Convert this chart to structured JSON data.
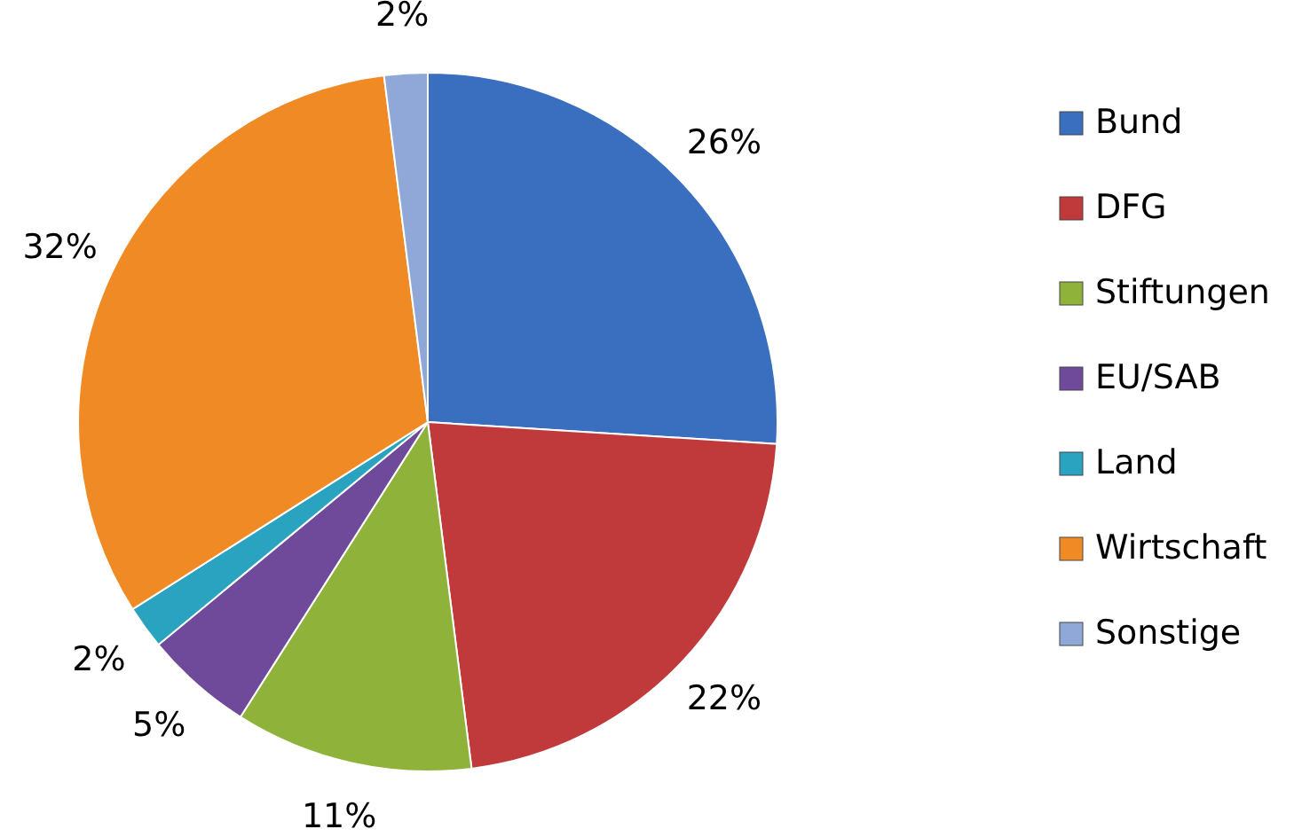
{
  "chart_data": {
    "type": "pie",
    "categories": [
      "Bund",
      "DFG",
      "Stiftungen",
      "EU/SAB",
      "Land",
      "Wirtschaft",
      "Sonstige"
    ],
    "values": [
      26,
      22,
      11,
      5,
      2,
      32,
      2
    ],
    "colors": [
      "#3a6fc0",
      "#c0393b",
      "#8fb33a",
      "#6f4a9a",
      "#2aa3c0",
      "#f08a24",
      "#8fa8d8"
    ],
    "value_labels": [
      "26%",
      "22%",
      "11%",
      "5%",
      "2%",
      "32%",
      "2%"
    ],
    "legend": "right"
  }
}
